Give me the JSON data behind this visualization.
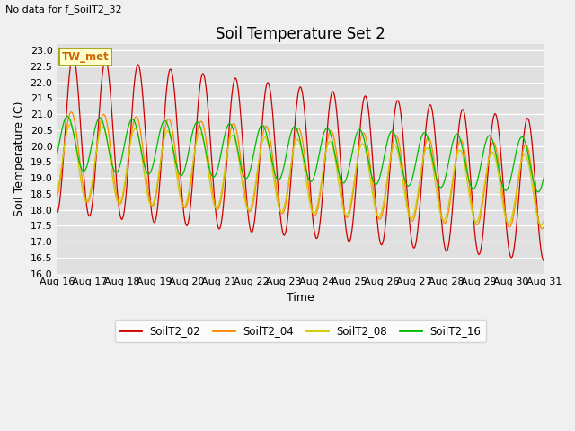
{
  "title": "Soil Temperature Set 2",
  "no_data_text": "No data for f_SoilT2_32",
  "tw_met_label": "TW_met",
  "xlabel": "Time",
  "ylabel": "Soil Temperature (C)",
  "ylim": [
    16.0,
    23.2
  ],
  "yticks": [
    16.0,
    16.5,
    17.0,
    17.5,
    18.0,
    18.5,
    19.0,
    19.5,
    20.0,
    20.5,
    21.0,
    21.5,
    22.0,
    22.5,
    23.0
  ],
  "xtick_labels": [
    "Aug 16",
    "Aug 17",
    "Aug 18",
    "Aug 19",
    "Aug 20",
    "Aug 21",
    "Aug 22",
    "Aug 23",
    "Aug 24",
    "Aug 25",
    "Aug 26",
    "Aug 27",
    "Aug 28",
    "Aug 29",
    "Aug 30",
    "Aug 31"
  ],
  "colors": {
    "SoilT2_02": "#cc0000",
    "SoilT2_04": "#ff8800",
    "SoilT2_08": "#cccc00",
    "SoilT2_16": "#00bb00"
  },
  "legend_labels": [
    "SoilT2_02",
    "SoilT2_04",
    "SoilT2_08",
    "SoilT2_16"
  ],
  "fig_bg": "#f0f0f0",
  "plot_bg": "#e0e0e0",
  "title_fontsize": 12,
  "axis_fontsize": 9,
  "tick_fontsize": 8
}
